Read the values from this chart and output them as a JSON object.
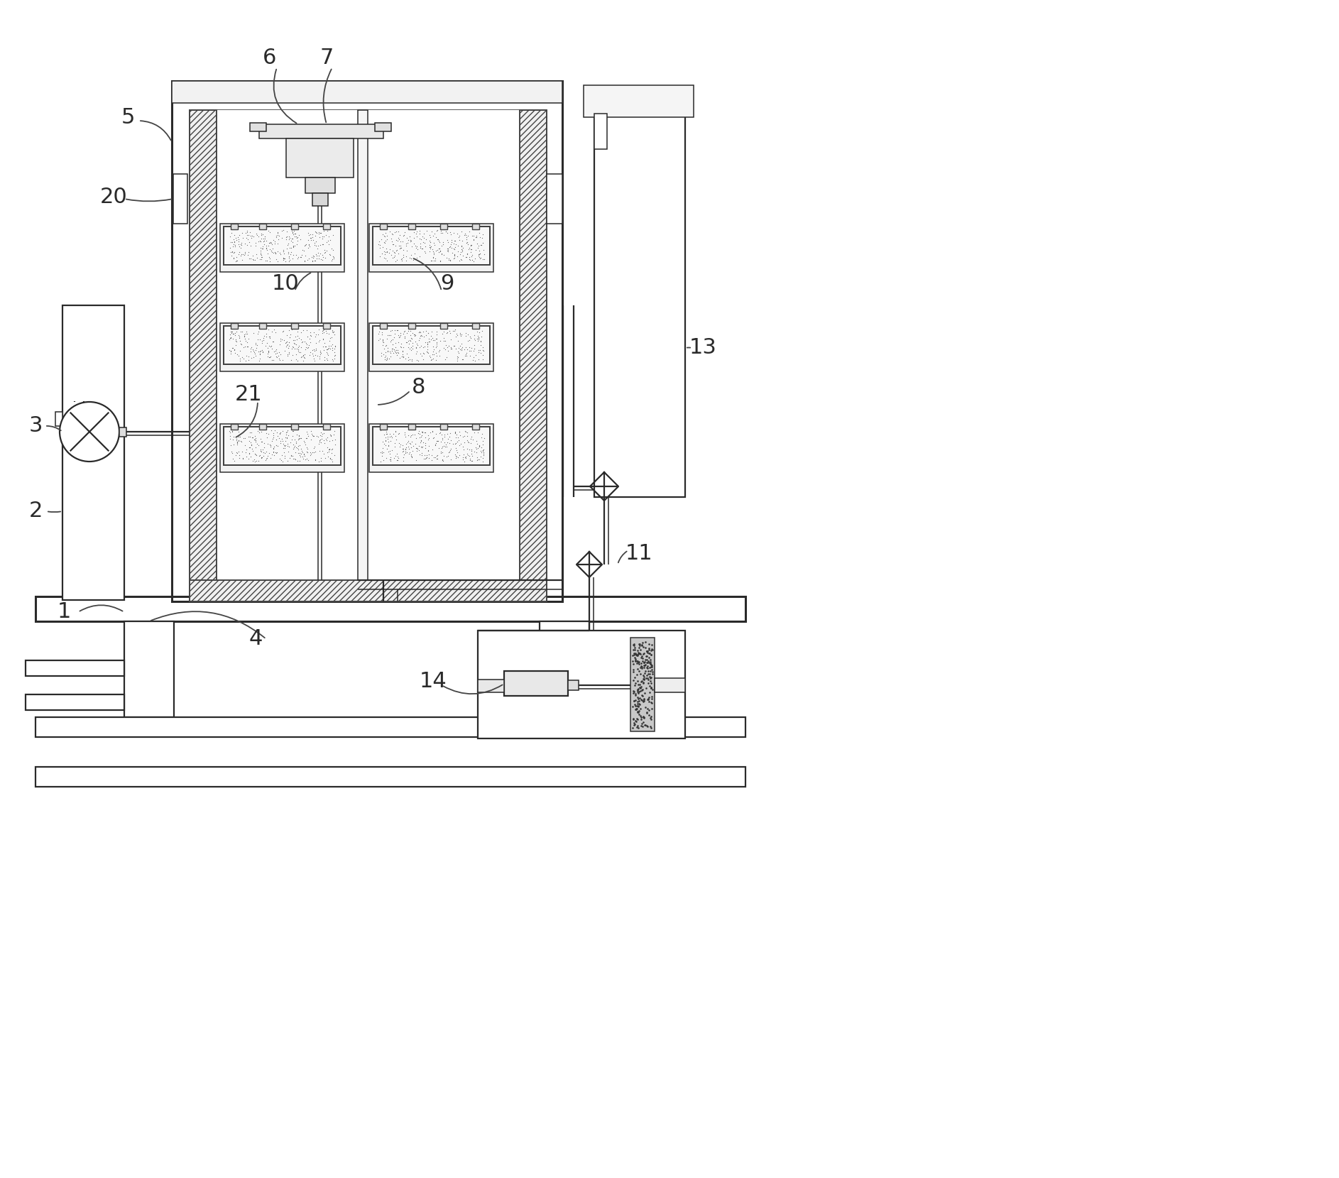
{
  "bg_color": "#ffffff",
  "lc": "#2a2a2a",
  "lw": 1.6,
  "lw2": 1.1,
  "lw3": 2.2,
  "fig_w": 18.86,
  "fig_h": 16.59
}
